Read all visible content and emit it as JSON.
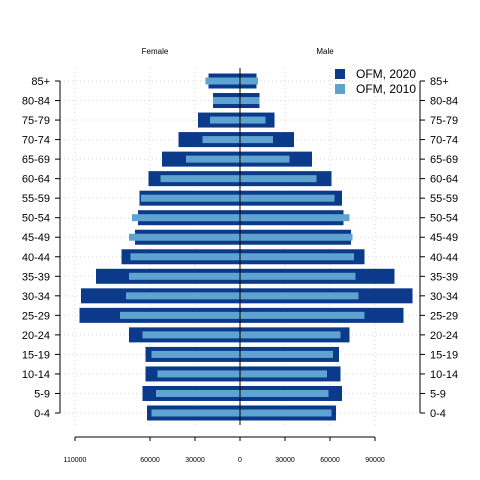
{
  "chart_data": {
    "type": "bar",
    "orientation": "horizontal-population-pyramid",
    "panels": {
      "left": "Female",
      "right": "Male"
    },
    "categories": [
      "0-4",
      "5-9",
      "10-14",
      "15-19",
      "20-24",
      "25-29",
      "30-34",
      "35-39",
      "40-44",
      "45-49",
      "50-54",
      "55-59",
      "60-64",
      "65-69",
      "70-74",
      "75-79",
      "80-84",
      "85+"
    ],
    "series": [
      {
        "name": "OFM, 2020",
        "color": "#0b3a8a",
        "female": [
          62000,
          65000,
          63000,
          63000,
          74000,
          107000,
          106000,
          96000,
          79000,
          70000,
          68000,
          67000,
          61000,
          52000,
          41000,
          28000,
          18000,
          21000
        ],
        "male": [
          64000,
          68000,
          67000,
          66000,
          73000,
          109000,
          115000,
          103000,
          83000,
          74000,
          69000,
          68000,
          61000,
          48000,
          36000,
          23000,
          13000,
          11000
        ]
      },
      {
        "name": "OFM, 2010",
        "color": "#5fa3d0",
        "female": [
          59000,
          56000,
          55000,
          59000,
          65000,
          80000,
          76000,
          74000,
          73000,
          74000,
          72000,
          66000,
          53000,
          36000,
          25000,
          20000,
          18000,
          23000
        ],
        "male": [
          61000,
          59000,
          58000,
          62000,
          67000,
          83000,
          79000,
          77000,
          76000,
          75000,
          73000,
          63000,
          51000,
          33000,
          22000,
          17000,
          13000,
          12000
        ]
      }
    ],
    "x_ticks": [
      -110000,
      -60000,
      -30000,
      0,
      30000,
      60000,
      90000
    ],
    "x_tick_labels": [
      "110000",
      "60000",
      "30000",
      "0",
      "30000",
      "60000",
      "90000"
    ],
    "xlim": [
      -110000,
      110000
    ],
    "grid": true,
    "legend_position": "top-right"
  }
}
